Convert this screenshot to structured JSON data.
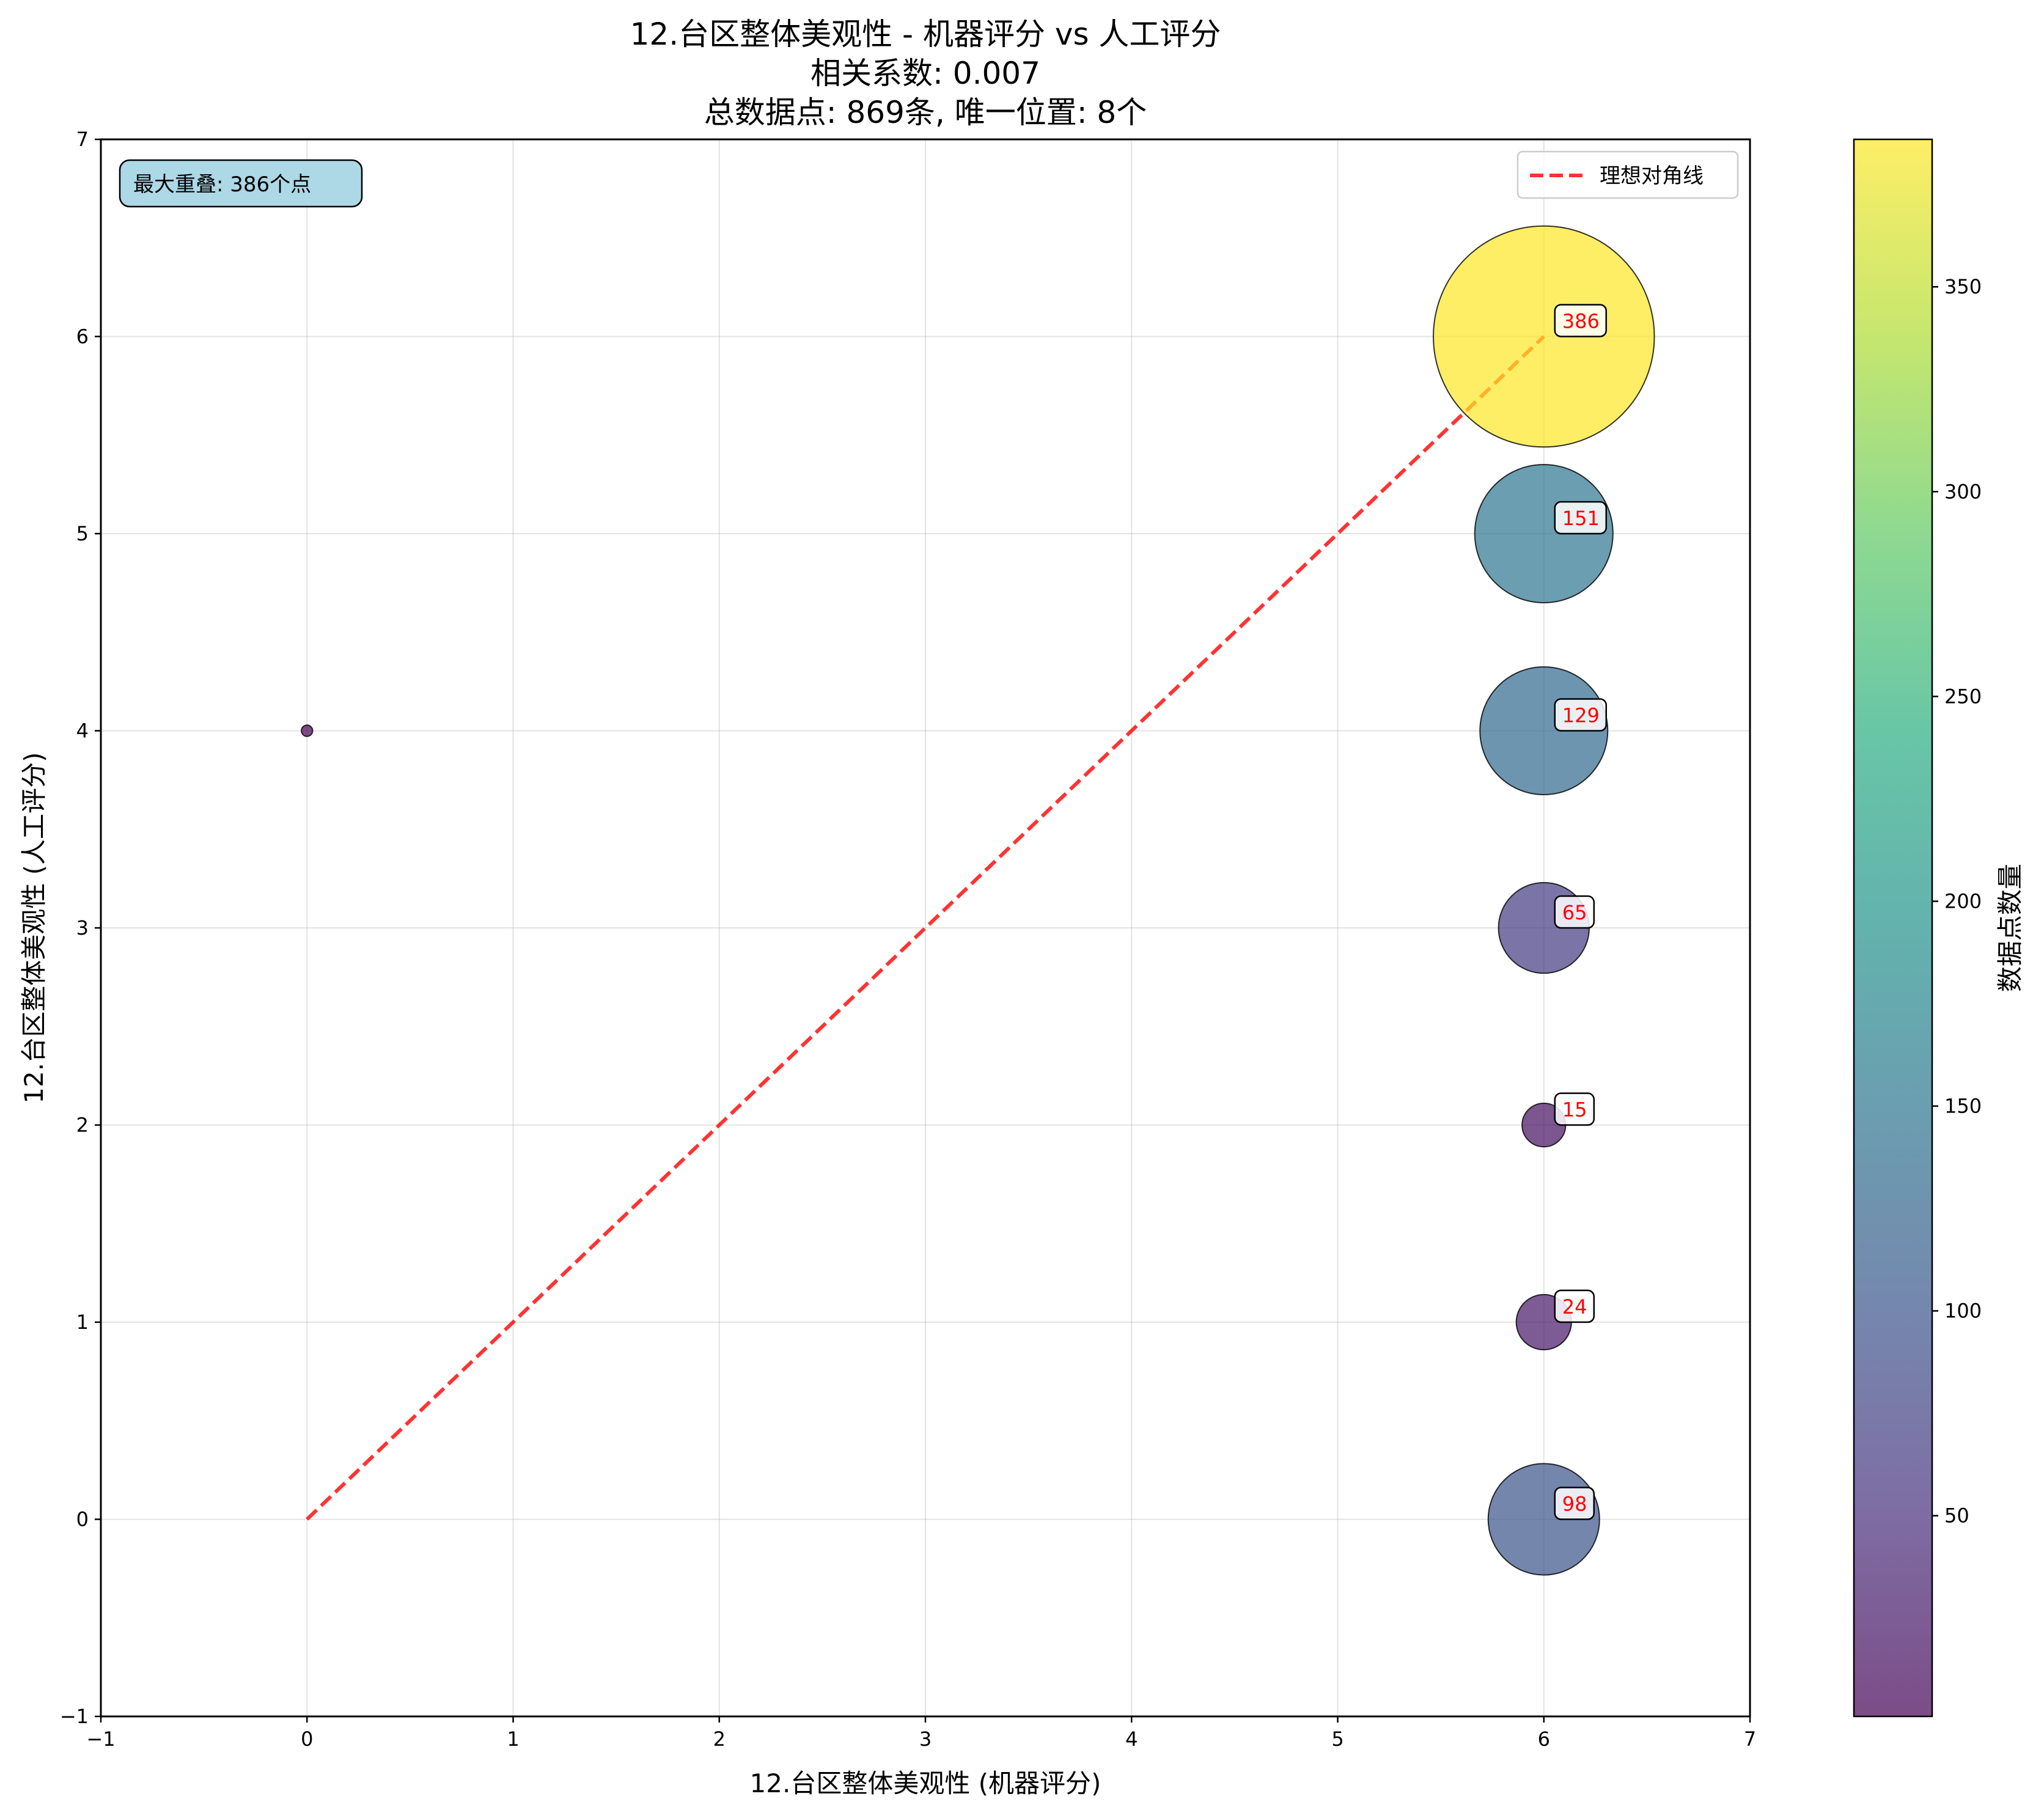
{
  "chart_data": {
    "type": "scatter",
    "title_lines": [
      "12.台区整体美观性 - 机器评分 vs 人工评分",
      "相关系数: 0.007",
      "总数据点: 869条, 唯一位置: 8个"
    ],
    "xlabel": "12.台区整体美观性 (机器评分)",
    "ylabel": "12.台区整体美观性 (人工评分)",
    "xlim": [
      -1,
      7
    ],
    "ylim": [
      -1,
      7
    ],
    "xticks": [
      -1,
      0,
      1,
      2,
      3,
      4,
      5,
      6,
      7
    ],
    "yticks": [
      -1,
      0,
      1,
      2,
      3,
      4,
      5,
      6,
      7
    ],
    "grid": true,
    "points": [
      {
        "x": 0,
        "y": 4,
        "count": 1
      },
      {
        "x": 6,
        "y": 0,
        "count": 98
      },
      {
        "x": 6,
        "y": 1,
        "count": 24
      },
      {
        "x": 6,
        "y": 2,
        "count": 15
      },
      {
        "x": 6,
        "y": 3,
        "count": 65
      },
      {
        "x": 6,
        "y": 4,
        "count": 129
      },
      {
        "x": 6,
        "y": 5,
        "count": 151
      },
      {
        "x": 6,
        "y": 6,
        "count": 386
      }
    ],
    "annotations": [
      {
        "x": 6,
        "y": 6,
        "label": "386"
      },
      {
        "x": 6,
        "y": 5,
        "label": "151"
      },
      {
        "x": 6,
        "y": 4,
        "label": "129"
      },
      {
        "x": 6,
        "y": 3,
        "label": "65"
      },
      {
        "x": 6,
        "y": 2,
        "label": "15"
      },
      {
        "x": 6,
        "y": 1,
        "label": "24"
      },
      {
        "x": 6,
        "y": 0,
        "label": "98"
      }
    ],
    "diagonal": {
      "from": [
        0,
        0
      ],
      "to": [
        6,
        6
      ],
      "label": "理想对角线",
      "color": "#ff0000",
      "style": "dashed"
    },
    "legend": {
      "entries": [
        "理想对角线"
      ],
      "placement": "top-right"
    },
    "info_box": {
      "text": "最大重叠: 386个点",
      "placement": "top-left",
      "color": "#add8e6"
    },
    "colorbar": {
      "label": "数据点数量",
      "colormap": "viridis",
      "range": [
        1,
        386
      ],
      "ticks": [
        50,
        100,
        150,
        200,
        250,
        300,
        350
      ]
    },
    "marker_alpha": 0.7,
    "annotation_color": "#ff0000"
  }
}
